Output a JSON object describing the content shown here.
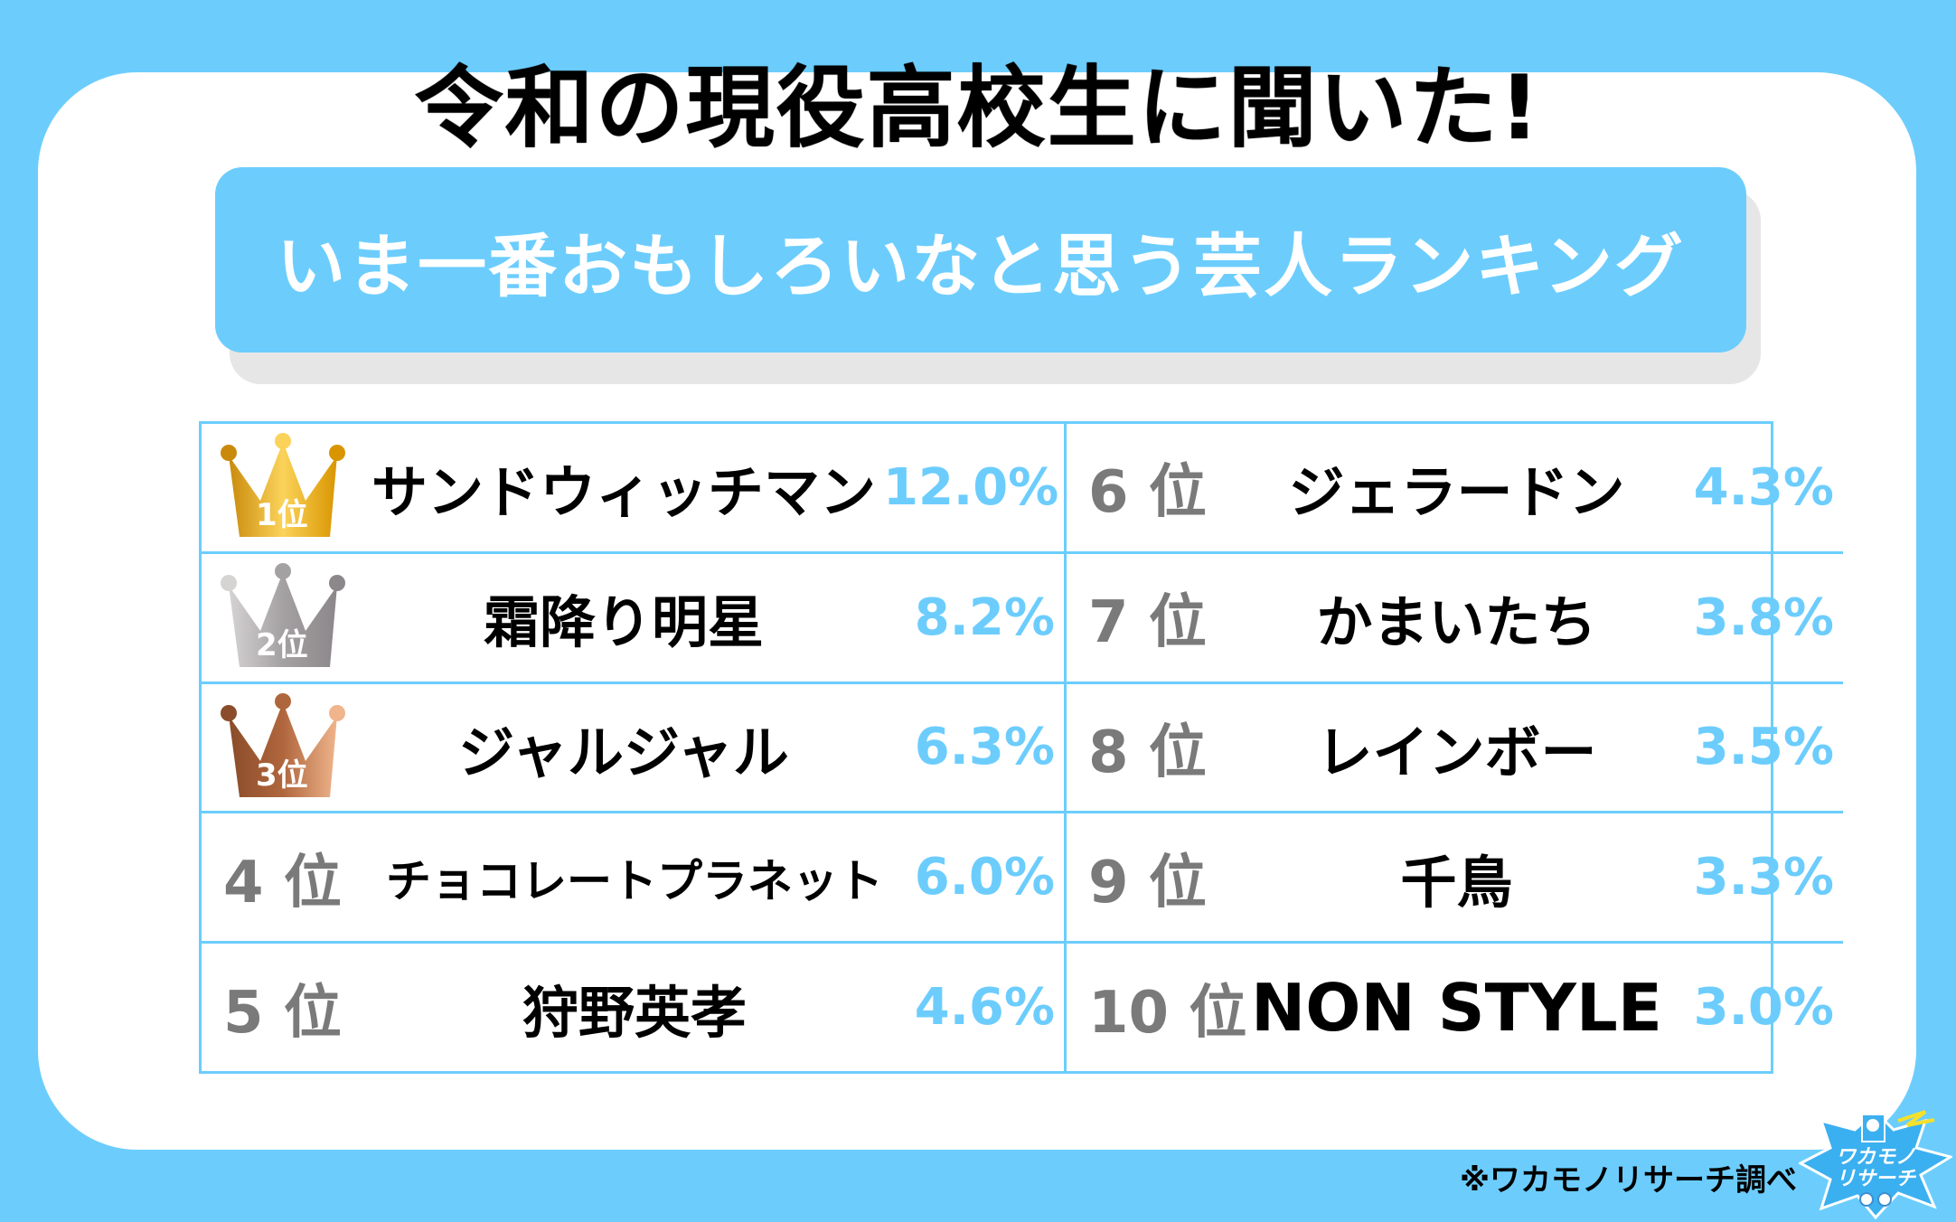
{
  "title": "令和の現役高校生に聞いた!",
  "banner": "いま一番おもしろいなと思う芸人ランキング",
  "colors": {
    "accent": "#6ccdfd",
    "gold": "#e2a31a",
    "silver": "#a9a6a8",
    "bronze": "#b0663d",
    "rank_gray": "#7a7a7a"
  },
  "ranking": [
    {
      "rank": "1位",
      "name": "サンドウィッチマン",
      "percent": "12.0%",
      "icon": "gold-crown-icon"
    },
    {
      "rank": "2位",
      "name": "霜降り明星",
      "percent": "8.2%",
      "icon": "silver-crown-icon"
    },
    {
      "rank": "3位",
      "name": "ジャルジャル",
      "percent": "6.3%",
      "icon": "bronze-crown-icon"
    },
    {
      "rank": "4 位",
      "name": "チョコレートプラネット",
      "percent": "6.0%"
    },
    {
      "rank": "5 位",
      "name": "狩野英孝",
      "percent": "4.6%"
    },
    {
      "rank": "6 位",
      "name": "ジェラードン",
      "percent": "4.3%"
    },
    {
      "rank": "7 位",
      "name": "かまいたち",
      "percent": "3.8%"
    },
    {
      "rank": "8 位",
      "name": "レインボー",
      "percent": "3.5%"
    },
    {
      "rank": "9 位",
      "name": "千鳥",
      "percent": "3.3%"
    },
    {
      "rank": "10 位",
      "name": "NON STYLE",
      "percent": "3.0%"
    }
  ],
  "footer": "※ワカモノリサーチ調べ",
  "logo_text": "ワカモノリサーチ"
}
